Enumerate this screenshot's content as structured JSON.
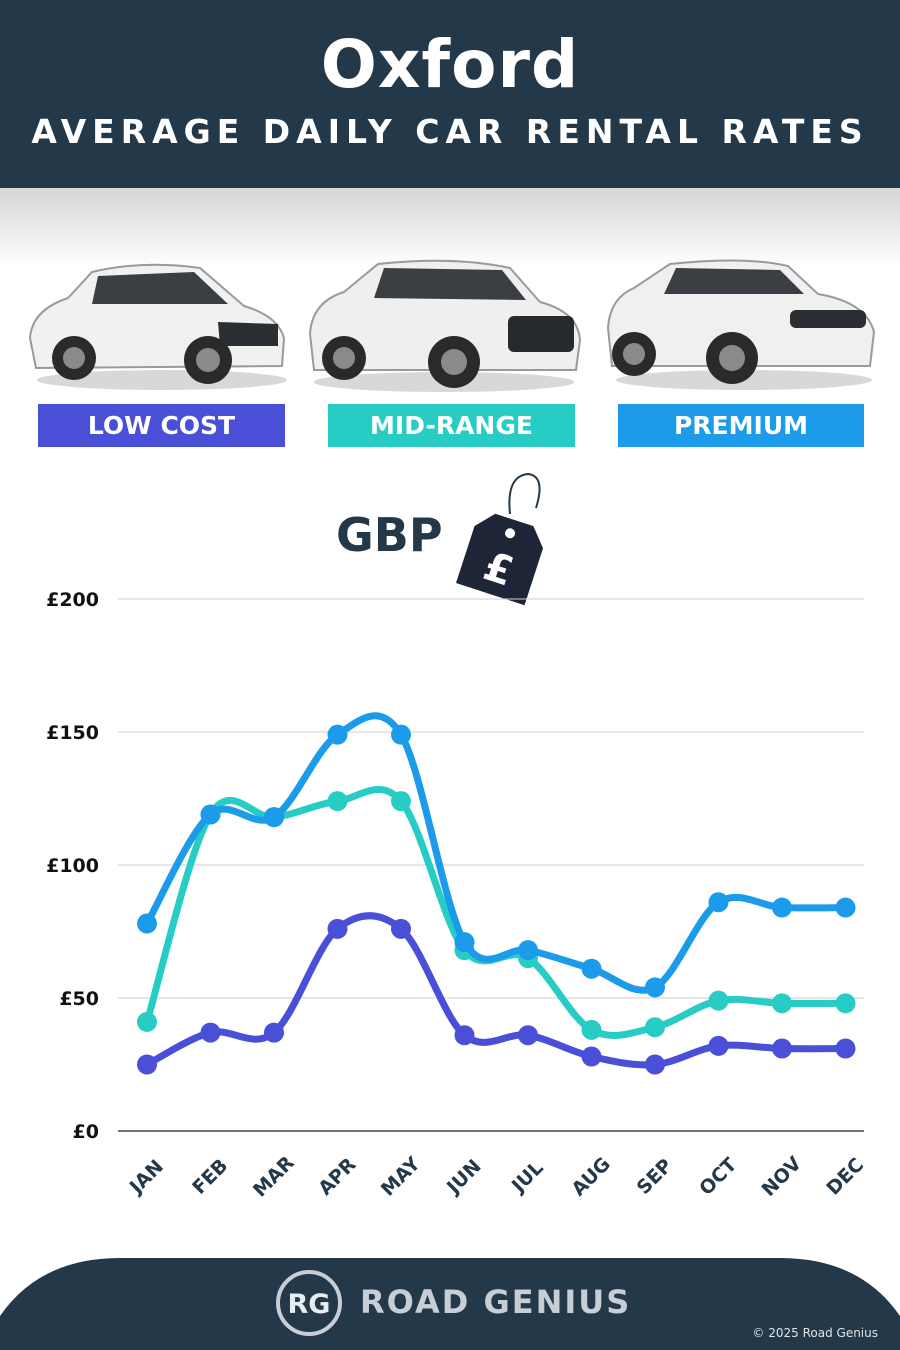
{
  "header": {
    "title": "Oxford",
    "subtitle": "AVERAGE DAILY CAR RENTAL RATES"
  },
  "categories": [
    {
      "label": "LOW COST",
      "color": "#4a4fd8"
    },
    {
      "label": "MID-RANGE",
      "color": "#27cdc5"
    },
    {
      "label": "PREMIUM",
      "color": "#1c9bea"
    }
  ],
  "currency": {
    "label": "GBP",
    "symbol": "£"
  },
  "chart_data": {
    "type": "line",
    "categories": [
      "JAN",
      "FEB",
      "MAR",
      "APR",
      "MAY",
      "JUN",
      "JUL",
      "AUG",
      "SEP",
      "OCT",
      "NOV",
      "DEC"
    ],
    "series": [
      {
        "name": "LOW COST",
        "color": "#4a4fd8",
        "values": [
          25,
          37,
          37,
          76,
          76,
          36,
          36,
          28,
          25,
          32,
          31,
          31
        ]
      },
      {
        "name": "MID-RANGE",
        "color": "#27cdc5",
        "values": [
          41,
          119,
          118,
          124,
          124,
          68,
          65,
          38,
          39,
          49,
          48,
          48
        ]
      },
      {
        "name": "PREMIUM",
        "color": "#1c9bea",
        "values": [
          78,
          119,
          118,
          149,
          149,
          71,
          68,
          61,
          54,
          86,
          84,
          84
        ]
      }
    ],
    "y_ticks": [
      "£0",
      "£50",
      "£100",
      "£150",
      "£200"
    ],
    "y_tick_values": [
      0,
      50,
      100,
      150,
      200
    ],
    "ylim": [
      0,
      200
    ],
    "grid": true
  },
  "footer": {
    "brand": "ROAD GENIUS",
    "logo": "RG",
    "copyright": "© 2025 Road Genius",
    "color": "#233849"
  }
}
